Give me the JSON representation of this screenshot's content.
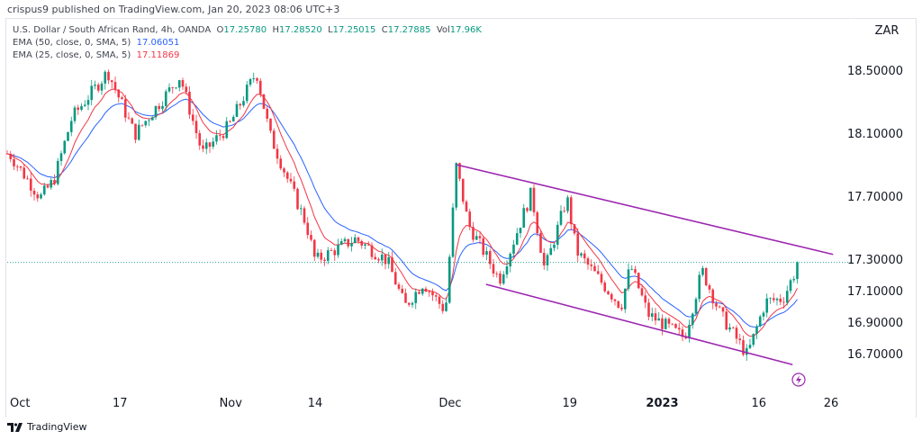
{
  "header": {
    "published": "crispus9 published on TradingView.com, Jan 20, 2023 08:06 UTC+3"
  },
  "legend": {
    "symbol": "U.S. Dollar / South African Rand, 4h, OANDA",
    "o_label": "O",
    "o": "17.25780",
    "h_label": "H",
    "h": "17.28520",
    "l_label": "L",
    "l": "17.25015",
    "c_label": "C",
    "c": "17.27885",
    "vol_label": "Vol",
    "vol": "17.96K",
    "ema50_label": "EMA (50, close, 0, SMA, 5)",
    "ema50": "17.06051",
    "ema25_label": "EMA (25, close, 0, SMA, 5)",
    "ema25": "17.11869"
  },
  "footer": {
    "brand": "TradingView"
  },
  "colors": {
    "up": "#089981",
    "down": "#f23645",
    "ema50": "#2962ff",
    "ema25": "#f23645",
    "channel": "#9c27b0"
  },
  "chart_data": {
    "type": "candlestick",
    "currency": "ZAR",
    "y_ticks": [
      {
        "v": 18.5,
        "label": "18.50000"
      },
      {
        "v": 18.1,
        "label": "18.10000"
      },
      {
        "v": 17.7,
        "label": "17.70000"
      },
      {
        "v": 17.3,
        "label": "17.30000"
      },
      {
        "v": 17.1,
        "label": "17.10000"
      },
      {
        "v": 16.9,
        "label": "16.90000"
      },
      {
        "v": 16.7,
        "label": "16.70000"
      }
    ],
    "x_ticks": [
      {
        "day": 1.9,
        "label": "Oct"
      },
      {
        "day": 16.7,
        "label": "17"
      },
      {
        "day": 33.1,
        "label": "Nov"
      },
      {
        "day": 45.6,
        "label": "14"
      },
      {
        "day": 65.6,
        "label": "Dec"
      },
      {
        "day": 83.3,
        "label": "19"
      },
      {
        "day": 97,
        "label": "2023",
        "bold": true
      },
      {
        "day": 111.3,
        "label": "16"
      },
      {
        "day": 122,
        "label": "26"
      }
    ],
    "close_path": [
      [
        0.3,
        17.97
      ],
      [
        4.9,
        17.69
      ],
      [
        6.9,
        17.8
      ],
      [
        9.6,
        18.2
      ],
      [
        14.9,
        18.49
      ],
      [
        18.9,
        18.09
      ],
      [
        25.6,
        18.46
      ],
      [
        28.9,
        17.97
      ],
      [
        32.9,
        18.15
      ],
      [
        36.9,
        18.49
      ],
      [
        38.9,
        18.09
      ],
      [
        41.6,
        17.8
      ],
      [
        44.3,
        17.52
      ],
      [
        45.6,
        17.29
      ],
      [
        51.6,
        17.43
      ],
      [
        56.3,
        17.29
      ],
      [
        58.9,
        17.0
      ],
      [
        61.6,
        17.15
      ],
      [
        64.9,
        16.97
      ],
      [
        66.5,
        17.89
      ],
      [
        68.3,
        17.52
      ],
      [
        72.9,
        17.17
      ],
      [
        77.6,
        17.72
      ],
      [
        79.6,
        17.23
      ],
      [
        82.9,
        17.69
      ],
      [
        84.3,
        17.35
      ],
      [
        90.9,
        17.0
      ],
      [
        92.3,
        17.26
      ],
      [
        94.9,
        16.95
      ],
      [
        100.3,
        16.8
      ],
      [
        102.9,
        17.23
      ],
      [
        105.6,
        16.95
      ],
      [
        109.6,
        16.69
      ],
      [
        112.3,
        17.03
      ],
      [
        114.9,
        17.05
      ],
      [
        117.3,
        17.28
      ]
    ],
    "last_price": 17.27885,
    "channel": {
      "upper": [
        [
          66.5,
          17.9
        ],
        [
          122.3,
          17.33
        ]
      ],
      "lower": [
        [
          70.9,
          17.14
        ],
        [
          116.3,
          16.63
        ]
      ]
    }
  }
}
